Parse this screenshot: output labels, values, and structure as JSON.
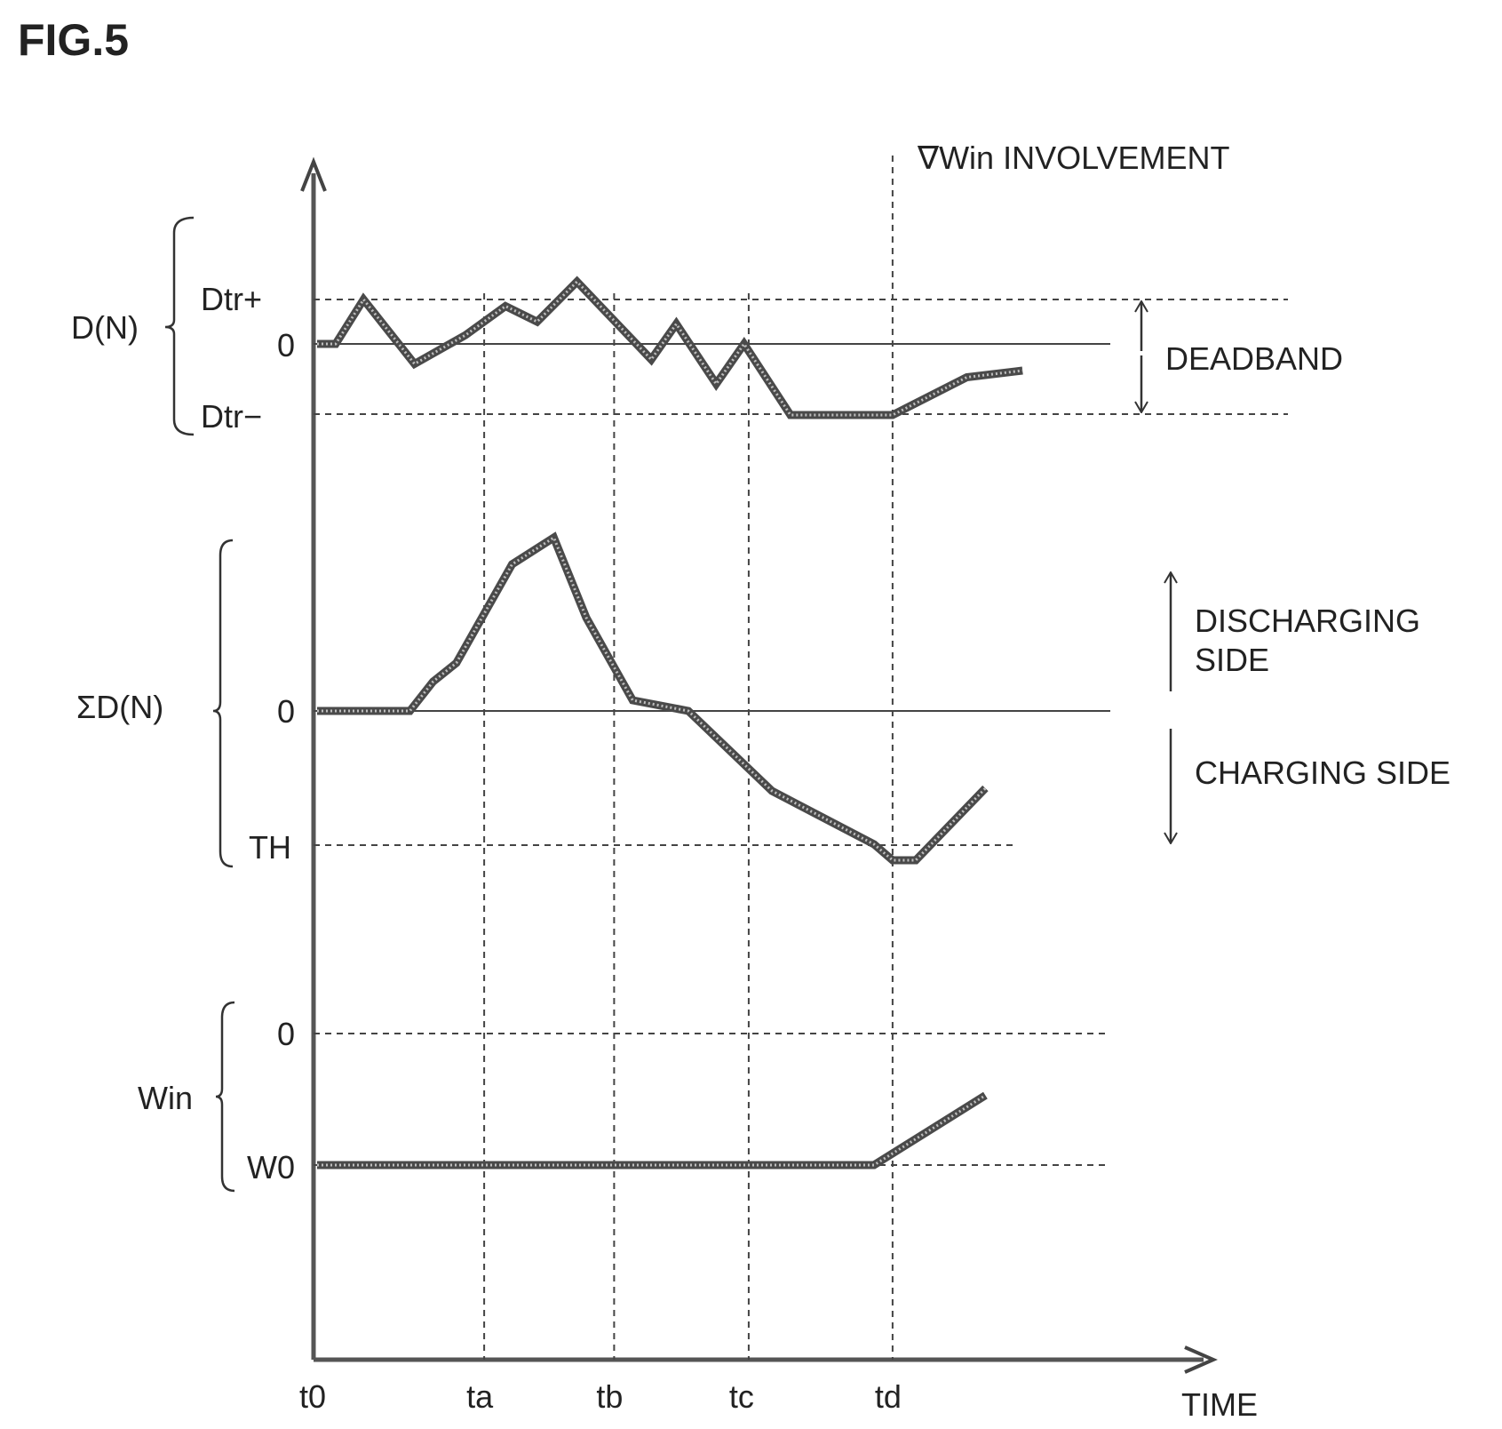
{
  "figure_label": "FIG.5",
  "chart_data": {
    "type": "line",
    "x_tick_labels": [
      "t0",
      "ta",
      "tb",
      "tc",
      "td"
    ],
    "xlabel": "TIME",
    "marker_label": "∇Win INVOLVEMENT",
    "panels": [
      {
        "name": "D(N)",
        "ref_labels": {
          "upper": "Dtr+",
          "zero": "0",
          "lower": "Dtr−"
        },
        "region_label": "DEADBAND",
        "points": [
          [
            0,
            0
          ],
          [
            0.2,
            0
          ],
          [
            0.5,
            1
          ],
          [
            1.05,
            -0.45
          ],
          [
            1.6,
            0.2
          ],
          [
            2.03,
            0.85
          ],
          [
            2.37,
            0.5
          ],
          [
            2.8,
            1.4
          ],
          [
            3.6,
            -0.35
          ],
          [
            3.87,
            0.45
          ],
          [
            4.3,
            -0.9
          ],
          [
            4.6,
            0
          ],
          [
            5.1,
            -1.6
          ],
          [
            6.2,
            -1.6
          ],
          [
            7,
            -0.75
          ],
          [
            7.6,
            -0.6
          ]
        ]
      },
      {
        "name": "ΣD(N)",
        "ref_labels": {
          "zero": "0",
          "threshold": "TH"
        },
        "upper_label": "DISCHARGING SIDE",
        "lower_label": "CHARGING SIDE",
        "points": [
          [
            0,
            0
          ],
          [
            1,
            0
          ],
          [
            1.25,
            0.22
          ],
          [
            1.5,
            0.36
          ],
          [
            2.1,
            1.1
          ],
          [
            2.55,
            1.3
          ],
          [
            2.9,
            0.7
          ],
          [
            3.4,
            0.08
          ],
          [
            4,
            0
          ],
          [
            4.9,
            -0.6
          ],
          [
            6,
            -1
          ],
          [
            6.2,
            -1.12
          ],
          [
            6.45,
            -1.12
          ],
          [
            7.2,
            -0.58
          ]
        ]
      },
      {
        "name": "Win",
        "ref_labels": {
          "zero": "0",
          "base": "W0"
        },
        "points": [
          [
            0,
            -1
          ],
          [
            6,
            -1
          ],
          [
            7.2,
            -0.47
          ]
        ]
      }
    ]
  }
}
